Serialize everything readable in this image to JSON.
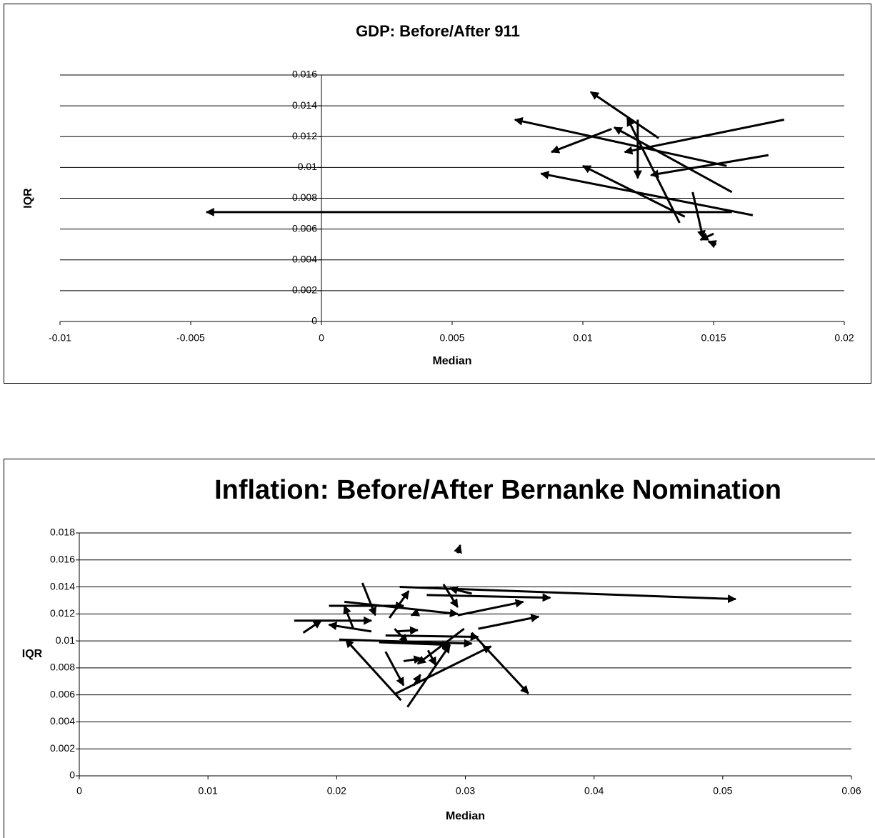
{
  "chart_data": [
    {
      "type": "quiver",
      "title": "GDP: Before/After 911",
      "xlabel": "Median",
      "ylabel": "IQR",
      "xlim": [
        -0.01,
        0.02
      ],
      "xticks": [
        -0.01,
        -0.005,
        0,
        0.005,
        0.01,
        0.015,
        0.02
      ],
      "ylim": [
        0,
        0.016
      ],
      "yticks": [
        0,
        0.002,
        0.004,
        0.006,
        0.008,
        0.01,
        0.012,
        0.014,
        0.016
      ],
      "grid": true,
      "color": "#000000",
      "x_start": [
        0.0129,
        0.0177,
        0.0157,
        0.0155,
        0.0111,
        0.0121,
        0.0137,
        0.0171,
        0.0165,
        0.0139,
        0.0157,
        0.0142,
        0.015,
        0.0151
      ],
      "y_start": [
        0.0119,
        0.0131,
        0.0084,
        0.0101,
        0.0125,
        0.0131,
        0.0064,
        0.0108,
        0.0069,
        0.0068,
        0.0071,
        0.0084,
        0.0057,
        0.005
      ],
      "x_end": [
        0.0103,
        0.0116,
        0.0112,
        0.0074,
        0.0088,
        0.0121,
        0.0117,
        0.0126,
        0.0084,
        0.01,
        -0.0044,
        0.0146,
        0.0145,
        0.0148
      ],
      "y_end": [
        0.0149,
        0.011,
        0.0126,
        0.0131,
        0.011,
        0.0093,
        0.0132,
        0.0095,
        0.0096,
        0.0101,
        0.0071,
        0.0054,
        0.0053,
        0.0052
      ]
    },
    {
      "type": "quiver",
      "title": "Inflation: Before/After Bernanke Nomination",
      "xlabel": "Median",
      "ylabel": "IQR",
      "xlim": [
        0,
        0.06
      ],
      "xticks": [
        0,
        0.01,
        0.02,
        0.03,
        0.04,
        0.05,
        0.06
      ],
      "ylim": [
        0,
        0.018
      ],
      "yticks": [
        0,
        0.002,
        0.004,
        0.006,
        0.008,
        0.01,
        0.012,
        0.014,
        0.016,
        0.018
      ],
      "grid": true,
      "color": "#000000",
      "x_start": [
        0.0249,
        0.027,
        0.0305,
        0.0206,
        0.0194,
        0.022,
        0.0241,
        0.0283,
        0.0294,
        0.031,
        0.0167,
        0.0174,
        0.0227,
        0.0213,
        0.0263,
        0.0202,
        0.0233,
        0.0238,
        0.0245,
        0.0246,
        0.0252,
        0.0271,
        0.0299,
        0.0305,
        0.025,
        0.0255,
        0.0246,
        0.0238,
        0.026,
        0.0294
      ],
      "y_start": [
        0.014,
        0.0134,
        0.0135,
        0.0129,
        0.0126,
        0.0143,
        0.0117,
        0.0142,
        0.0119,
        0.0109,
        0.0115,
        0.0106,
        0.0107,
        0.0109,
        0.0121,
        0.0101,
        0.0099,
        0.0104,
        0.0109,
        0.0107,
        0.0085,
        0.0093,
        0.0109,
        0.0106,
        0.0056,
        0.0051,
        0.0061,
        0.0092,
        0.0067,
        0.0165
      ],
      "x_end": [
        0.051,
        0.0366,
        0.0288,
        0.0294,
        0.0252,
        0.023,
        0.0256,
        0.0294,
        0.0345,
        0.0357,
        0.0227,
        0.0188,
        0.0194,
        0.0206,
        0.0258,
        0.0305,
        0.0288,
        0.031,
        0.0255,
        0.0263,
        0.0266,
        0.0277,
        0.0263,
        0.0349,
        0.0207,
        0.0288,
        0.032,
        0.0252,
        0.0265,
        0.0296
      ],
      "y_end": [
        0.0131,
        0.0132,
        0.0139,
        0.012,
        0.0126,
        0.0119,
        0.0137,
        0.0125,
        0.0129,
        0.0118,
        0.0115,
        0.0115,
        0.0112,
        0.0126,
        0.0119,
        0.0098,
        0.0097,
        0.0103,
        0.0099,
        0.0108,
        0.0087,
        0.0082,
        0.0083,
        0.0061,
        0.0101,
        0.0097,
        0.0096,
        0.0067,
        0.0075,
        0.0171
      ]
    }
  ]
}
